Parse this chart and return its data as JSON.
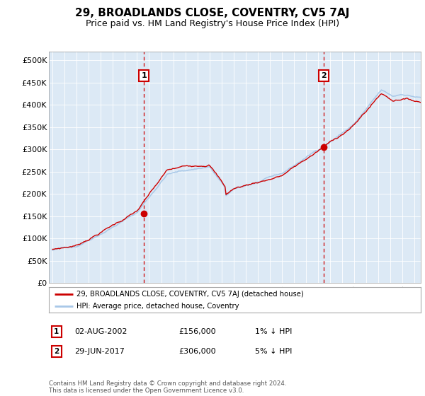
{
  "title": "29, BROADLANDS CLOSE, COVENTRY, CV5 7AJ",
  "subtitle": "Price paid vs. HM Land Registry's House Price Index (HPI)",
  "title_fontsize": 11,
  "subtitle_fontsize": 9,
  "background_color": "#ffffff",
  "plot_bg_color": "#dce9f5",
  "ylim": [
    0,
    520000
  ],
  "yticks": [
    0,
    50000,
    100000,
    150000,
    200000,
    250000,
    300000,
    350000,
    400000,
    450000,
    500000
  ],
  "ytick_labels": [
    "£0",
    "£50K",
    "£100K",
    "£150K",
    "£200K",
    "£250K",
    "£300K",
    "£350K",
    "£400K",
    "£450K",
    "£500K"
  ],
  "sale1_date": 2002.58,
  "sale1_price": 156000,
  "sale1_label": "1",
  "sale2_date": 2017.49,
  "sale2_price": 306000,
  "sale2_label": "2",
  "hpi_line_color": "#a8c8e8",
  "price_line_color": "#cc0000",
  "dashed_line_color": "#cc0000",
  "marker_color": "#cc0000",
  "legend_label1": "29, BROADLANDS CLOSE, COVENTRY, CV5 7AJ (detached house)",
  "legend_label2": "HPI: Average price, detached house, Coventry",
  "table_row1": [
    "1",
    "02-AUG-2002",
    "£156,000",
    "1% ↓ HPI"
  ],
  "table_row2": [
    "2",
    "29-JUN-2017",
    "£306,000",
    "5% ↓ HPI"
  ],
  "footnote": "Contains HM Land Registry data © Crown copyright and database right 2024.\nThis data is licensed under the Open Government Licence v3.0.",
  "xstart": 1994.7,
  "xend": 2025.5
}
